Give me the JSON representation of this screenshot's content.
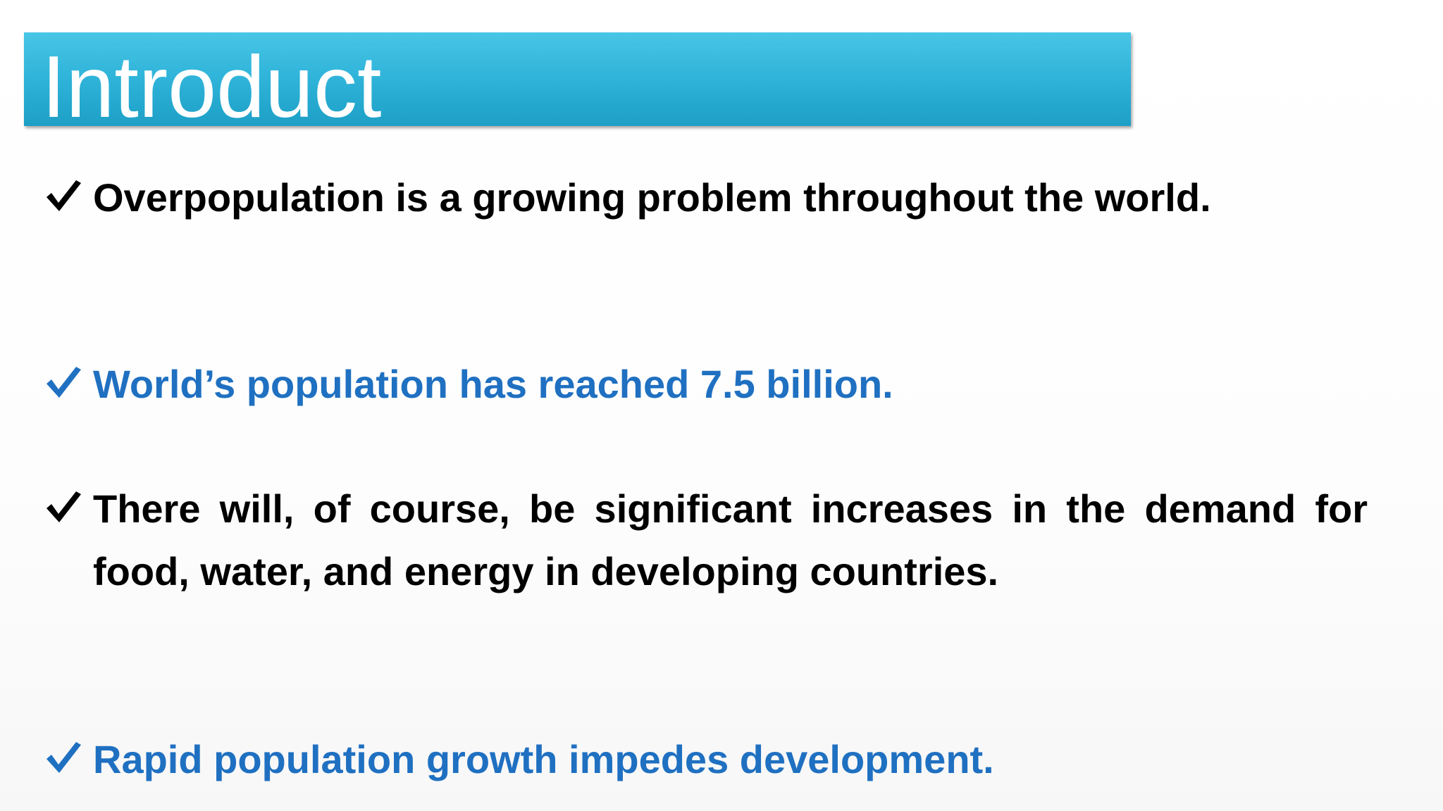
{
  "header": {
    "title": "Introduct"
  },
  "bullets": [
    {
      "text": "Overpopulation is a growing problem throughout the world."
    },
    {
      "text": "World’s population has reached 7.5 billion."
    },
    {
      "text": "There will, of course, be significant increases in the demand for food, water, and energy in developing countries."
    },
    {
      "text": "Rapid population growth impedes development."
    }
  ]
}
